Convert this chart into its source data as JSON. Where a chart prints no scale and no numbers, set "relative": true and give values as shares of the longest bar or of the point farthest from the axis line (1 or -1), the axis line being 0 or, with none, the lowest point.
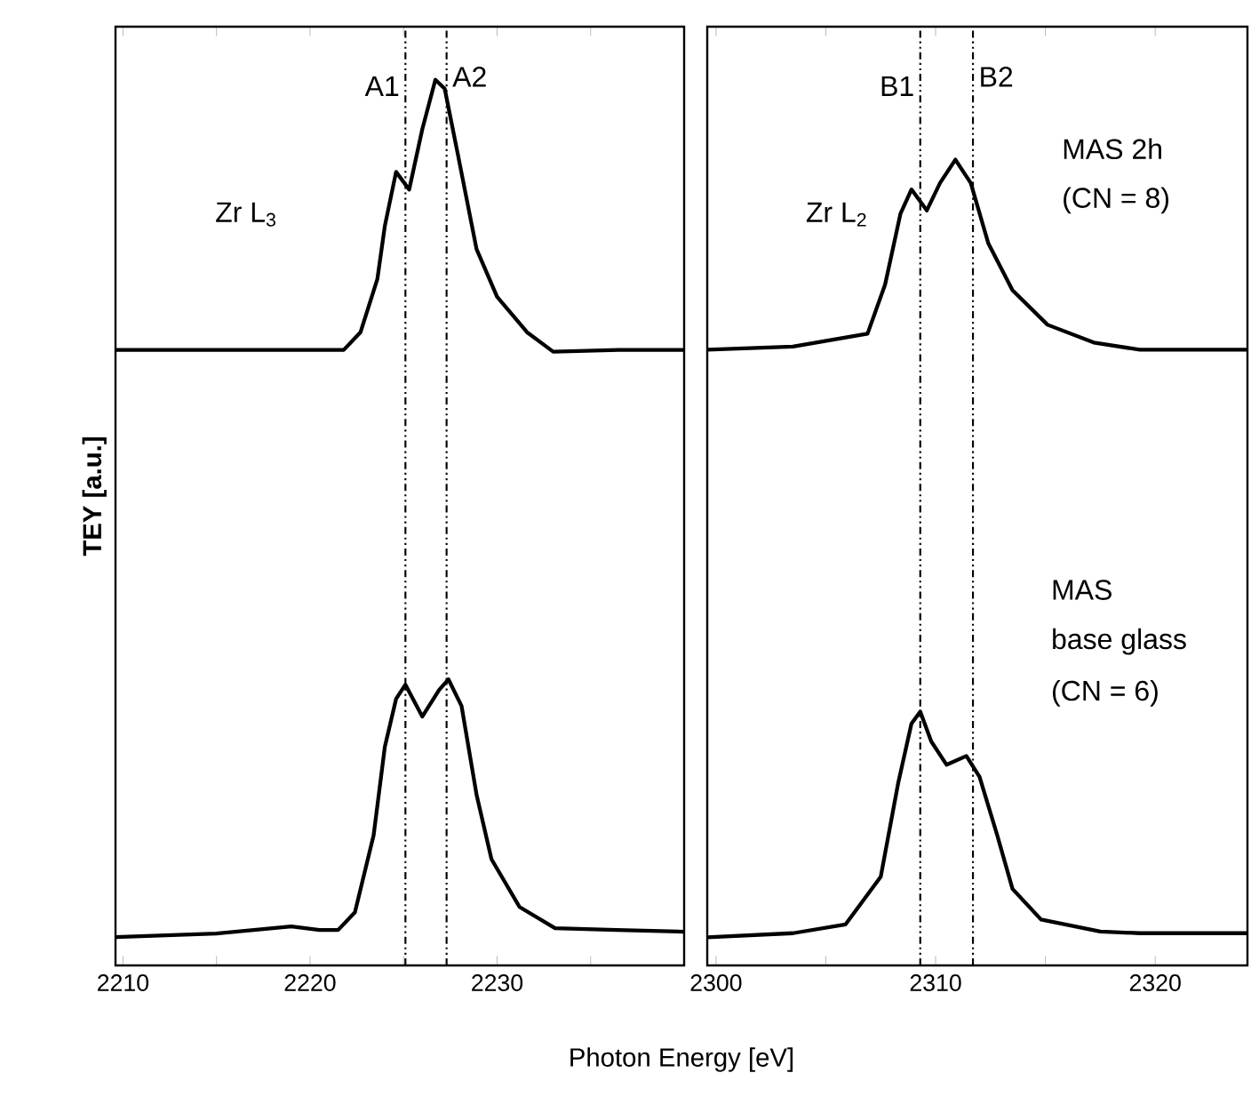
{
  "chart_data": [
    {
      "type": "line",
      "xlabel": "Photon Energy [eV]",
      "ylabel": "TEY [a.u.]",
      "relative": true,
      "xlim": [
        2209.6,
        2240
      ],
      "xticks": [
        2210,
        {
          "value": 2215,
          "label": null
        },
        2220,
        {
          "value": 2225,
          "label": null
        },
        2230,
        {
          "value": 2235,
          "label": null
        }
      ],
      "series": [
        {
          "color": "#000000",
          "x": [
            2209.6,
            2215,
            2219,
            2220.5,
            2221.8,
            2222.7,
            2223.6,
            2224.0,
            2224.6,
            2225.3,
            2226.0,
            2226.7,
            2227.2,
            2227.9,
            2228.9,
            2230.0,
            2231.6,
            2233.0,
            2236.5,
            2240
          ],
          "values": [
            0.695,
            0.695,
            0.695,
            0.695,
            0.695,
            0.715,
            0.775,
            0.835,
            0.896,
            0.876,
            0.944,
            1.0,
            0.99,
            0.916,
            0.809,
            0.755,
            0.715,
            0.693,
            0.695,
            0.695
          ]
        },
        {
          "color": "#000000",
          "x": [
            2209.6,
            2215,
            2219,
            2220.5,
            2221.5,
            2222.4,
            2223.4,
            2224.0,
            2224.6,
            2225.1,
            2226.0,
            2226.9,
            2227.4,
            2228.1,
            2228.9,
            2229.7,
            2231.2,
            2233.1,
            2236.4,
            2240
          ],
          "values": [
            0.032,
            0.036,
            0.044,
            0.04,
            0.04,
            0.06,
            0.147,
            0.247,
            0.301,
            0.317,
            0.281,
            0.311,
            0.323,
            0.293,
            0.193,
            0.12,
            0.066,
            0.042,
            0.04,
            0.038
          ]
        }
      ],
      "ref_lines": [
        {
          "axis": "x",
          "value": 2225.1,
          "label": "A1",
          "color": "#000000",
          "line_style": "dotted"
        },
        {
          "axis": "x",
          "value": 2227.3,
          "label": "A2",
          "color": "#000000",
          "line_style": "dotted"
        }
      ],
      "annotations": [
        "Zr L$_{3}$"
      ]
    },
    {
      "type": "line",
      "relative": true,
      "xlim": [
        2299.6,
        2324.2
      ],
      "xticks": [
        2300,
        {
          "value": 2305,
          "label": null
        },
        2310,
        {
          "value": 2315,
          "label": null
        },
        2320
      ],
      "series": [
        {
          "color": "#000000",
          "x": [
            2299.6,
            2303.5,
            2306.9,
            2307.7,
            2308.4,
            2308.9,
            2309.6,
            2310.2,
            2310.9,
            2311.6,
            2312.4,
            2313.5,
            2315.1,
            2317.2,
            2319.3,
            2324.2
          ],
          "values": [
            0.764,
            0.768,
            0.784,
            0.845,
            0.933,
            0.963,
            0.937,
            0.971,
            1.0,
            0.971,
            0.896,
            0.838,
            0.795,
            0.773,
            0.764,
            0.764
          ]
        },
        {
          "color": "#000000",
          "x": [
            2299.6,
            2303.5,
            2305.9,
            2307.5,
            2308.3,
            2308.9,
            2309.3,
            2309.8,
            2310.5,
            2311.4,
            2312.0,
            2312.8,
            2313.5,
            2314.8,
            2317.5,
            2319.3,
            2324.2
          ],
          "values": [
            0.035,
            0.04,
            0.051,
            0.11,
            0.227,
            0.3,
            0.315,
            0.278,
            0.249,
            0.26,
            0.234,
            0.162,
            0.095,
            0.057,
            0.042,
            0.04,
            0.04
          ]
        }
      ],
      "ref_lines": [
        {
          "axis": "x",
          "value": 2309.3,
          "label": "B1",
          "color": "#000000",
          "line_style": "dotted"
        },
        {
          "axis": "x",
          "value": 2311.7,
          "label": "B2",
          "color": "#000000",
          "line_style": "dotted"
        }
      ],
      "annotations": [
        "Zr L$_{2}$",
        "MAS 2h",
        "(CN = 8)",
        "MAS",
        "base glass",
        "(CN = 6)"
      ]
    }
  ]
}
